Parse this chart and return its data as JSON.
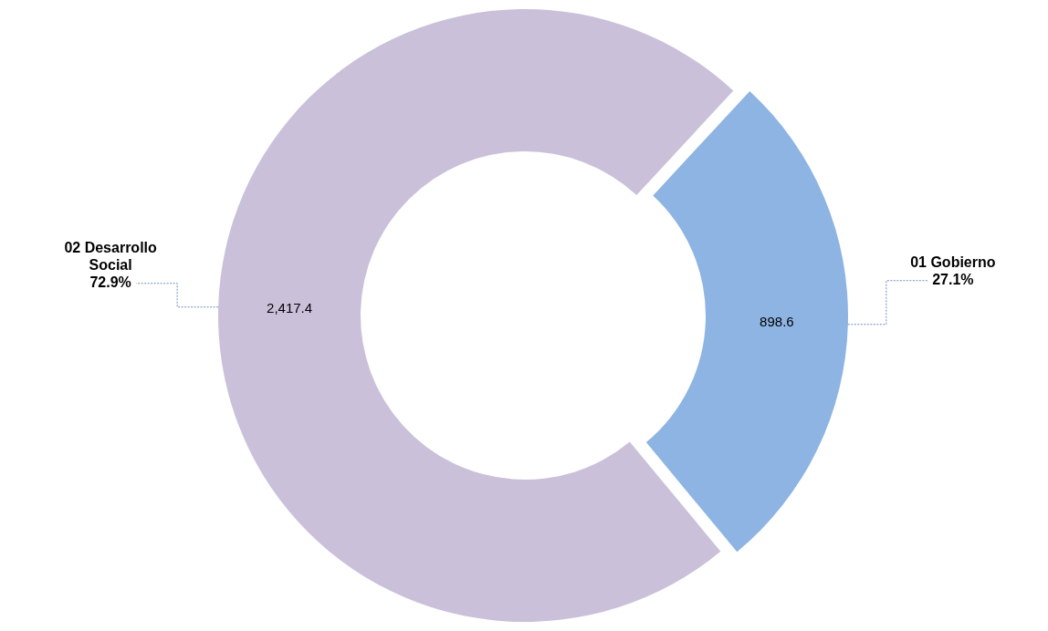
{
  "chart_data": {
    "type": "donut",
    "categories": [
      "01 Gobierno",
      "02 Desarrollo Social"
    ],
    "values": [
      898.6,
      2417.4
    ],
    "colors": [
      "#8eb4e3",
      "#cbc0da"
    ],
    "value_labels": [
      "898.6",
      "2,417.4"
    ],
    "annotations": [
      "27.1%",
      "72.9%"
    ]
  }
}
